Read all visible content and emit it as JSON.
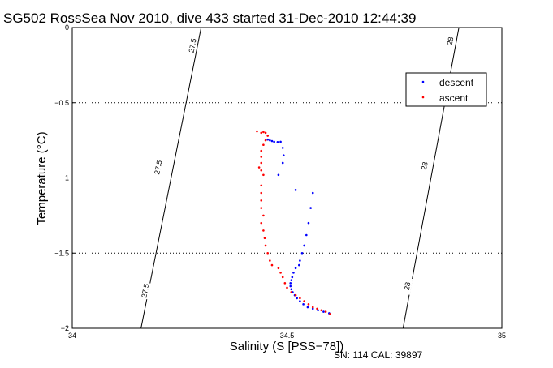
{
  "chart_data": {
    "type": "scatter",
    "title": "SG502 RossSea Nov 2010, dive 433 started 31-Dec-2010 12:44:39",
    "xlabel": "Salinity (S [PSS−78])",
    "ylabel": "Temperature (°C)",
    "xlim": [
      34,
      35
    ],
    "ylim": [
      -2,
      0
    ],
    "xticks": [
      "34",
      "34.5",
      "35"
    ],
    "yticks": [
      "0",
      "−0.5",
      "−1",
      "−1.5",
      "−2"
    ],
    "grid": true,
    "legend_position": "top-right",
    "colors": {
      "descent": "#0000ff",
      "ascent": "#ff0000",
      "contour": "#000000"
    },
    "density_contours": [
      {
        "label": "27.5",
        "points": [
          [
            34.16,
            -2.0
          ],
          [
            34.3,
            0.0
          ]
        ],
        "label_positions": [
          [
            34.28,
            -0.12
          ],
          [
            34.2,
            -0.93
          ],
          [
            34.17,
            -1.75
          ]
        ]
      },
      {
        "label": "28",
        "points": [
          [
            34.77,
            -2.0
          ],
          [
            34.9,
            0.0
          ]
        ],
        "label_positions": [
          [
            34.88,
            -0.09
          ],
          [
            34.82,
            -0.92
          ],
          [
            34.78,
            -1.72
          ]
        ]
      }
    ],
    "series": [
      {
        "name": "descent",
        "points": [
          [
            34.455,
            -0.745
          ],
          [
            34.46,
            -0.75
          ],
          [
            34.465,
            -0.755
          ],
          [
            34.47,
            -0.76
          ],
          [
            34.478,
            -0.762
          ],
          [
            34.485,
            -0.76
          ],
          [
            34.49,
            -0.8
          ],
          [
            34.492,
            -0.85
          ],
          [
            34.49,
            -0.9
          ],
          [
            34.48,
            -0.98
          ],
          [
            34.52,
            -1.08
          ],
          [
            34.56,
            -1.1
          ],
          [
            34.555,
            -1.2
          ],
          [
            34.55,
            -1.3
          ],
          [
            34.545,
            -1.38
          ],
          [
            34.54,
            -1.45
          ],
          [
            34.535,
            -1.5
          ],
          [
            34.53,
            -1.55
          ],
          [
            34.528,
            -1.58
          ],
          [
            34.52,
            -1.6
          ],
          [
            34.515,
            -1.63
          ],
          [
            34.512,
            -1.66
          ],
          [
            34.51,
            -1.68
          ],
          [
            34.508,
            -1.7
          ],
          [
            34.508,
            -1.72
          ],
          [
            34.51,
            -1.74
          ],
          [
            34.513,
            -1.76
          ],
          [
            34.518,
            -1.78
          ],
          [
            34.523,
            -1.8
          ],
          [
            34.53,
            -1.82
          ],
          [
            34.538,
            -1.84
          ],
          [
            34.548,
            -1.86
          ],
          [
            34.56,
            -1.87
          ],
          [
            34.572,
            -1.88
          ],
          [
            34.585,
            -1.89
          ],
          [
            34.598,
            -1.9
          ]
        ]
      },
      {
        "name": "ascent",
        "points": [
          [
            34.43,
            -0.69
          ],
          [
            34.44,
            -0.7
          ],
          [
            34.445,
            -0.695
          ],
          [
            34.45,
            -0.7
          ],
          [
            34.455,
            -0.72
          ],
          [
            34.45,
            -0.75
          ],
          [
            34.445,
            -0.78
          ],
          [
            34.44,
            -0.82
          ],
          [
            34.44,
            -0.86
          ],
          [
            34.44,
            -0.9
          ],
          [
            34.435,
            -0.93
          ],
          [
            34.44,
            -0.95
          ],
          [
            34.445,
            -0.98
          ],
          [
            34.44,
            -1.05
          ],
          [
            34.44,
            -1.1
          ],
          [
            34.44,
            -1.15
          ],
          [
            34.44,
            -1.2
          ],
          [
            34.445,
            -1.25
          ],
          [
            34.44,
            -1.3
          ],
          [
            34.445,
            -1.35
          ],
          [
            34.448,
            -1.4
          ],
          [
            34.45,
            -1.45
          ],
          [
            34.455,
            -1.5
          ],
          [
            34.46,
            -1.55
          ],
          [
            34.465,
            -1.58
          ],
          [
            34.48,
            -1.6
          ],
          [
            34.485,
            -1.63
          ],
          [
            34.49,
            -1.66
          ],
          [
            34.495,
            -1.7
          ],
          [
            34.5,
            -1.73
          ],
          [
            34.51,
            -1.76
          ],
          [
            34.52,
            -1.78
          ],
          [
            34.53,
            -1.8
          ],
          [
            34.54,
            -1.82
          ],
          [
            34.55,
            -1.84
          ],
          [
            34.56,
            -1.86
          ],
          [
            34.57,
            -1.87
          ],
          [
            34.58,
            -1.88
          ],
          [
            34.59,
            -1.89
          ],
          [
            34.6,
            -1.905
          ]
        ]
      }
    ]
  },
  "footer": "SN: 114  CAL: 39897"
}
